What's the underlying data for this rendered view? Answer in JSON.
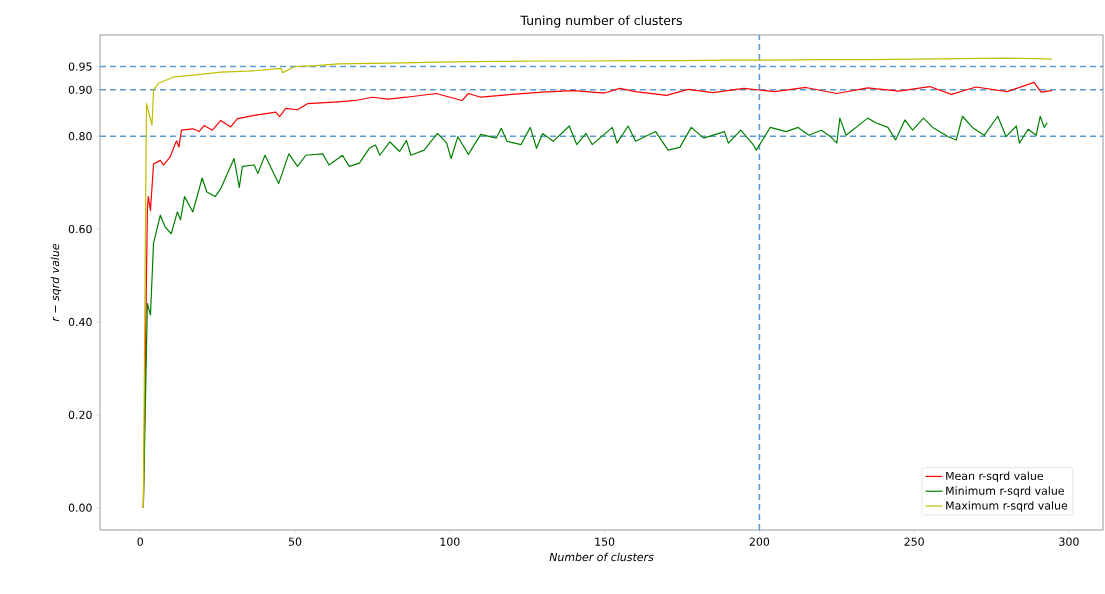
{
  "chart_data": {
    "type": "line",
    "title": "Tuning number of clusters",
    "xlabel": "Number of clusters",
    "ylabel": "r − sqrd value",
    "xlim": [
      -13,
      311
    ],
    "ylim": [
      -0.048,
      1.018
    ],
    "xticks": [
      0,
      50,
      100,
      150,
      200,
      250,
      300
    ],
    "yticks": [
      {
        "value": 0,
        "label": "0.00"
      },
      {
        "value": 0.2,
        "label": "0.20"
      },
      {
        "value": 0.4,
        "label": "0.40"
      },
      {
        "value": 0.6,
        "label": "0.60"
      },
      {
        "value": 0.8,
        "label": "0.80"
      },
      {
        "value": 0.9,
        "label": "0.90"
      },
      {
        "value": 0.95,
        "label": "0.95"
      }
    ],
    "legend": "bottom right",
    "marker": "none",
    "line_style": "solid",
    "ref_lines": [
      {
        "axis": "y",
        "value": 0.8,
        "color": "#5b9bd5",
        "line_style": "dashed"
      },
      {
        "axis": "y",
        "value": 0.9,
        "color": "#5b9bd5",
        "line_style": "dashed"
      },
      {
        "axis": "y",
        "value": 0.95,
        "color": "#5b9bd5",
        "line_style": "dashed"
      },
      {
        "axis": "x",
        "value": 200,
        "color": "#5b9bd5",
        "line_style": "dashed"
      }
    ],
    "series": [
      {
        "name": "Mean r-sqrd value",
        "color": "#ff0000",
        "x": [
          1,
          2.3,
          2.6,
          3.3,
          4.3,
          6.5,
          7.5,
          9.6,
          11.7,
          12.5,
          13.3,
          17,
          19,
          20.6,
          23.3,
          26,
          29.2,
          31.4,
          36.8,
          43.8,
          45,
          47,
          50.8,
          54,
          64,
          69.5,
          75,
          80,
          86,
          95.6,
          104,
          106,
          110,
          120,
          130,
          140,
          150,
          155,
          160,
          170,
          177,
          185,
          195,
          205,
          215,
          225,
          235,
          245,
          255,
          262,
          270,
          280,
          288.7,
          291,
          294.5
        ],
        "values": [
          0,
          0.64,
          0.67,
          0.64,
          0.74,
          0.748,
          0.738,
          0.755,
          0.79,
          0.777,
          0.813,
          0.816,
          0.81,
          0.823,
          0.813,
          0.834,
          0.82,
          0.838,
          0.845,
          0.852,
          0.842,
          0.86,
          0.857,
          0.87,
          0.874,
          0.877,
          0.884,
          0.88,
          0.884,
          0.892,
          0.877,
          0.892,
          0.884,
          0.89,
          0.895,
          0.898,
          0.893,
          0.903,
          0.896,
          0.888,
          0.901,
          0.894,
          0.903,
          0.896,
          0.905,
          0.892,
          0.904,
          0.897,
          0.907,
          0.89,
          0.906,
          0.896,
          0.916,
          0.895,
          0.898
        ]
      },
      {
        "name": "Minimum r-sqrd value",
        "color": "#008000",
        "x": [
          1,
          2.3,
          3.3,
          4.3,
          6.5,
          8,
          10,
          12,
          13,
          14.3,
          17,
          20,
          21.5,
          24.2,
          26,
          30.3,
          32,
          33,
          36.8,
          38,
          40.3,
          44.7,
          48,
          50.8,
          53.5,
          58.9,
          61,
          65.3,
          67.5,
          70.8,
          74,
          76,
          77.4,
          80.6,
          83.8,
          86,
          87.4,
          91.7,
          96,
          99,
          100.4,
          102.6,
          106,
          110,
          115,
          116.6,
          118.5,
          123,
          126,
          128,
          130,
          133.4,
          138.6,
          141,
          144,
          146,
          152.5,
          154,
          157.6,
          160,
          166.5,
          170.5,
          174.3,
          178,
          182,
          188.7,
          190,
          194,
          198,
          199,
          203.5,
          208.6,
          212.5,
          216,
          220,
          223,
          225,
          226,
          228,
          235,
          237.6,
          241.5,
          244,
          247,
          249.5,
          253,
          256,
          261,
          263.6,
          265.6,
          268.8,
          272.6,
          277,
          279.7,
          283,
          284,
          286.8,
          289.4,
          290.7,
          292,
          293
        ],
        "values": [
          0,
          0.44,
          0.415,
          0.57,
          0.63,
          0.605,
          0.59,
          0.637,
          0.62,
          0.67,
          0.637,
          0.71,
          0.68,
          0.67,
          0.687,
          0.752,
          0.69,
          0.735,
          0.738,
          0.72,
          0.759,
          0.698,
          0.762,
          0.735,
          0.759,
          0.762,
          0.738,
          0.759,
          0.735,
          0.742,
          0.774,
          0.781,
          0.759,
          0.788,
          0.767,
          0.791,
          0.759,
          0.77,
          0.806,
          0.785,
          0.752,
          0.799,
          0.761,
          0.804,
          0.796,
          0.817,
          0.789,
          0.782,
          0.819,
          0.774,
          0.806,
          0.789,
          0.822,
          0.782,
          0.806,
          0.782,
          0.819,
          0.785,
          0.822,
          0.789,
          0.81,
          0.77,
          0.776,
          0.819,
          0.796,
          0.81,
          0.785,
          0.813,
          0.782,
          0.77,
          0.819,
          0.81,
          0.819,
          0.802,
          0.813,
          0.799,
          0.785,
          0.839,
          0.802,
          0.839,
          0.829,
          0.819,
          0.792,
          0.835,
          0.813,
          0.839,
          0.819,
          0.799,
          0.792,
          0.843,
          0.819,
          0.802,
          0.843,
          0.799,
          0.822,
          0.785,
          0.815,
          0.802,
          0.843,
          0.819,
          0.829
        ]
      },
      {
        "name": "Maximum r-sqrd value",
        "color": "#bfbf00",
        "x": [
          1,
          2,
          3.8,
          4.3,
          5.9,
          11,
          18,
          26,
          35,
          45.5,
          46,
          50,
          57,
          64,
          75,
          85,
          101,
          115,
          130,
          145,
          160,
          175,
          190,
          205,
          220,
          235,
          250,
          265,
          280,
          290,
          294.5
        ],
        "values": [
          0,
          0.87,
          0.824,
          0.9,
          0.914,
          0.928,
          0.932,
          0.938,
          0.94,
          0.946,
          0.937,
          0.95,
          0.952,
          0.956,
          0.957,
          0.958,
          0.96,
          0.961,
          0.962,
          0.962,
          0.963,
          0.963,
          0.964,
          0.964,
          0.965,
          0.965,
          0.966,
          0.967,
          0.968,
          0.967,
          0.966
        ]
      }
    ]
  }
}
